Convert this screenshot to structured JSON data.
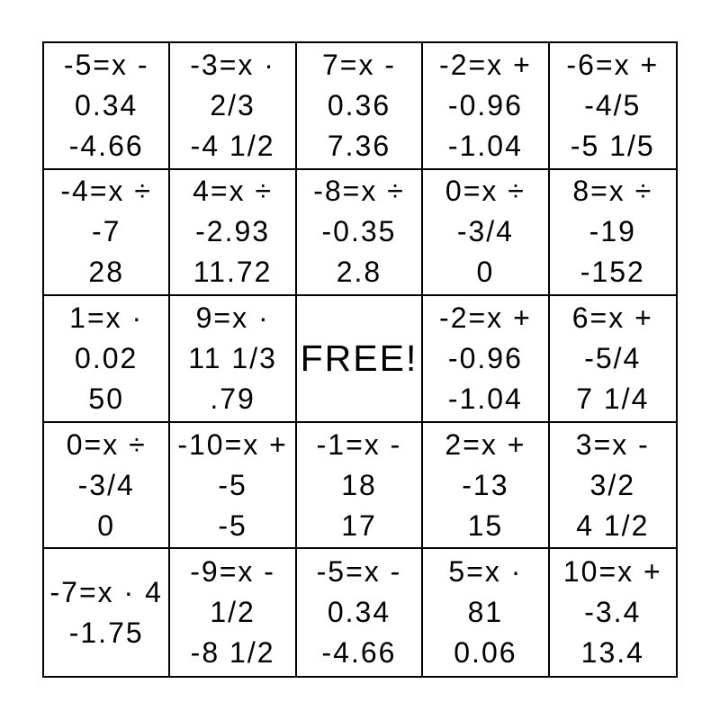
{
  "colors": {
    "background": "#ffffff",
    "grid_border": "#000000",
    "text": "#000000"
  },
  "card": {
    "free_label": "FREE!",
    "rows": [
      {
        "cells": [
          {
            "lines": [
              "-5=x -",
              "0.34",
              "-4.66"
            ]
          },
          {
            "lines": [
              "-3=x ·",
              "2/3",
              "-4 1/2"
            ]
          },
          {
            "lines": [
              "7=x -",
              "0.36",
              "7.36"
            ]
          },
          {
            "lines": [
              "-2=x +",
              "-0.96",
              "-1.04"
            ]
          },
          {
            "lines": [
              "-6=x +",
              "-4/5",
              "-5 1/5"
            ]
          }
        ]
      },
      {
        "cells": [
          {
            "lines": [
              "-4=x ÷",
              "-7",
              "28"
            ]
          },
          {
            "lines": [
              "4=x ÷",
              "-2.93",
              "11.72"
            ]
          },
          {
            "lines": [
              "-8=x ÷",
              "-0.35",
              "2.8"
            ]
          },
          {
            "lines": [
              "0=x ÷",
              "-3/4",
              "0"
            ]
          },
          {
            "lines": [
              "8=x ÷",
              "-19",
              "-152"
            ]
          }
        ]
      },
      {
        "cells": [
          {
            "lines": [
              "1=x ·",
              "0.02",
              "50"
            ]
          },
          {
            "lines": [
              "9=x ·",
              "11 1/3",
              ".79"
            ]
          },
          {
            "lines": [
              "FREE!"
            ]
          },
          {
            "lines": [
              "-2=x +",
              "-0.96",
              "-1.04"
            ]
          },
          {
            "lines": [
              "6=x +",
              "-5/4",
              "7 1/4"
            ]
          }
        ]
      },
      {
        "cells": [
          {
            "lines": [
              "0=x ÷",
              "-3/4",
              "0"
            ]
          },
          {
            "lines": [
              "-10=x +",
              "-5",
              "-5"
            ]
          },
          {
            "lines": [
              "-1=x -",
              "18",
              "17"
            ]
          },
          {
            "lines": [
              "2=x +",
              "-13",
              "15"
            ]
          },
          {
            "lines": [
              "3=x -",
              "3/2",
              "4 1/2"
            ]
          }
        ]
      },
      {
        "cells": [
          {
            "lines": [
              "-7=x · 4",
              "-1.75"
            ]
          },
          {
            "lines": [
              "-9=x -",
              "1/2",
              "-8 1/2"
            ]
          },
          {
            "lines": [
              "-5=x -",
              "0.34",
              "-4.66"
            ]
          },
          {
            "lines": [
              "5=x ·",
              "81",
              "0.06"
            ]
          },
          {
            "lines": [
              "10=x +",
              "-3.4",
              "13.4"
            ]
          }
        ]
      }
    ]
  }
}
